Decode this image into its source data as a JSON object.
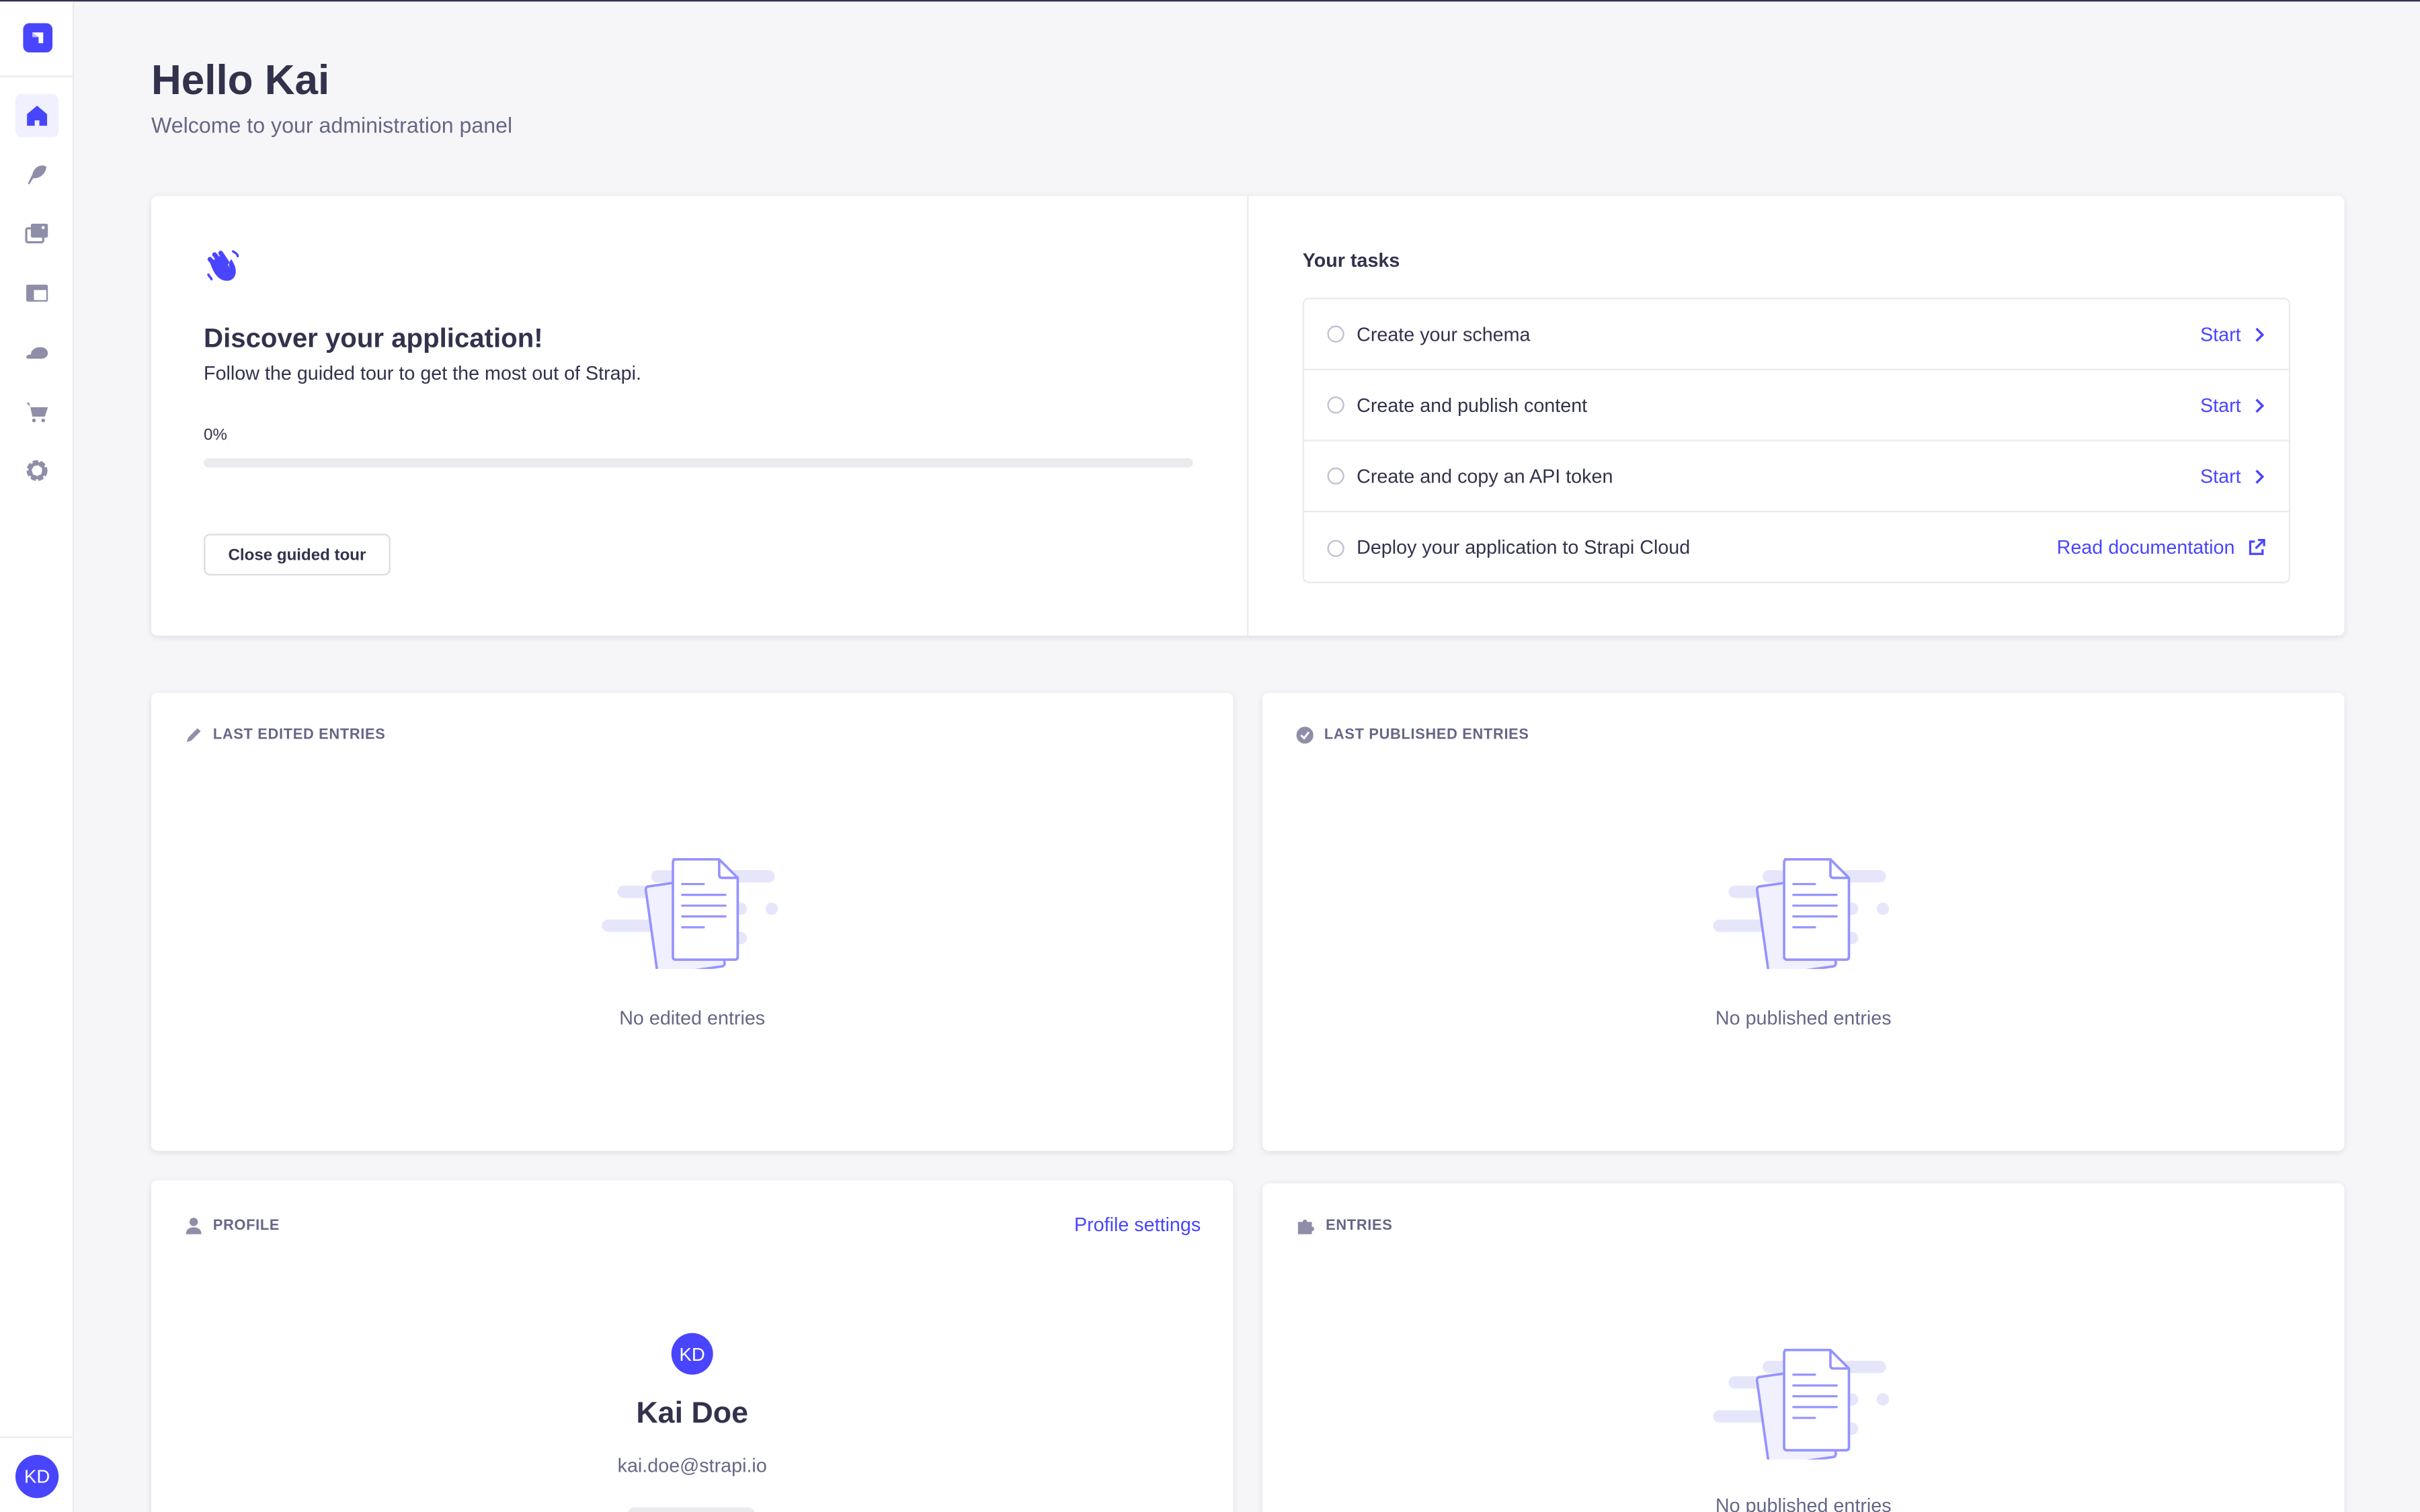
{
  "colors": {
    "primary": "#4945ff",
    "background": "#f6f6f9",
    "text": "#32324d",
    "muted": "#666687"
  },
  "sidebar": {
    "logo": "strapi-logo",
    "items": [
      {
        "name": "home",
        "icon": "home-icon",
        "active": true
      },
      {
        "name": "content-manager",
        "icon": "feather-icon"
      },
      {
        "name": "media-library",
        "icon": "images-icon"
      },
      {
        "name": "content-type-builder",
        "icon": "layout-icon"
      },
      {
        "name": "deploy",
        "icon": "cloud-icon"
      },
      {
        "name": "marketplace",
        "icon": "cart-icon"
      },
      {
        "name": "settings",
        "icon": "gear-icon"
      }
    ],
    "user_initials": "KD"
  },
  "header": {
    "title": "Hello Kai",
    "subtitle": "Welcome to your administration panel"
  },
  "guided_tour": {
    "title": "Discover your application!",
    "description": "Follow the guided tour to get the most out of Strapi.",
    "progress_label": "0%",
    "progress": 0,
    "close_button": "Close guided tour",
    "tasks_title": "Your tasks",
    "tasks": [
      {
        "label": "Create your schema",
        "action": "Start",
        "icon": "chevron-right-icon"
      },
      {
        "label": "Create and publish content",
        "action": "Start",
        "icon": "chevron-right-icon"
      },
      {
        "label": "Create and copy an API token",
        "action": "Start",
        "icon": "chevron-right-icon"
      },
      {
        "label": "Deploy your application to Strapi Cloud",
        "action": "Read documentation",
        "icon": "external-link-icon"
      }
    ]
  },
  "widgets": {
    "last_edited": {
      "title": "LAST EDITED ENTRIES",
      "empty": "No edited entries"
    },
    "last_published": {
      "title": "LAST PUBLISHED ENTRIES",
      "empty": "No published entries"
    },
    "profile": {
      "title": "PROFILE",
      "link": "Profile settings",
      "initials": "KD",
      "name": "Kai Doe",
      "email": "kai.doe@strapi.io"
    },
    "entries": {
      "title": "ENTRIES",
      "empty": "No published entries"
    }
  }
}
